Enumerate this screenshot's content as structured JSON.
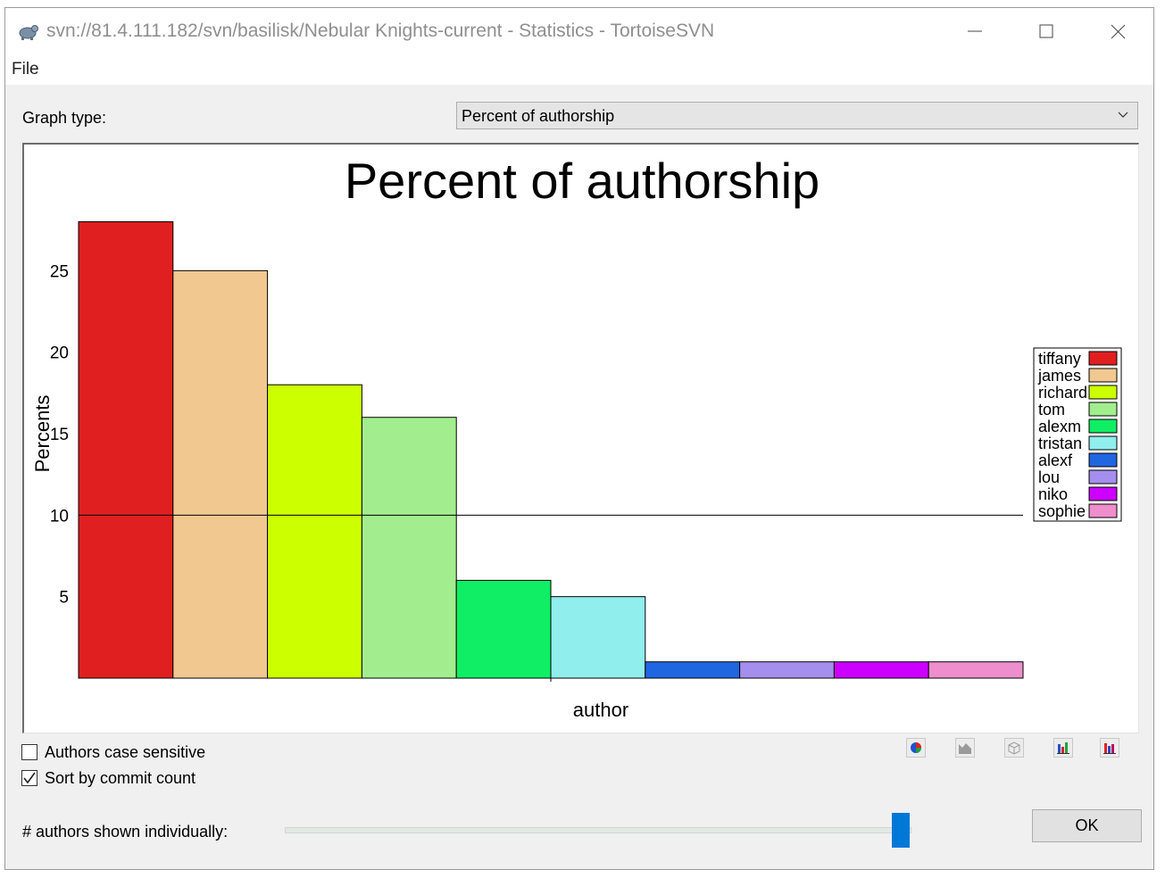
{
  "window": {
    "title": "svn://81.4.111.182/svn/basilisk/Nebular Knights-current - Statistics - TortoiseSVN",
    "icon": "tortoise-icon"
  },
  "menu": {
    "file_label": "File"
  },
  "graph_type": {
    "label": "Graph type:",
    "selected": "Percent of authorship"
  },
  "options": {
    "case_sensitive_label": "Authors case sensitive",
    "case_sensitive_checked": false,
    "sort_label": "Sort by commit count",
    "sort_checked": true
  },
  "slider": {
    "label": "# authors shown individually:",
    "value_fraction": 0.98
  },
  "toolbar": {
    "buttons": [
      "pie-chart-icon",
      "area-chart-icon",
      "3d-chart-icon",
      "bar-chart-icon",
      "stacked-bar-chart-icon"
    ]
  },
  "ok_label": "OK",
  "chart_data": {
    "type": "bar",
    "title": "Percent of authorship",
    "xlabel": "author",
    "ylabel": "Percents",
    "ylim": [
      0,
      30
    ],
    "yticks": [
      5,
      10,
      15,
      20,
      25
    ],
    "reference_line": 10,
    "grid": false,
    "legend_position": "right",
    "categories": [
      "tiffany",
      "james",
      "richard",
      "tom",
      "alexm",
      "tristan",
      "alexf",
      "lou",
      "niko",
      "sophie"
    ],
    "values": [
      28,
      25,
      18,
      16,
      6,
      5,
      1,
      1,
      1,
      1
    ],
    "colors": [
      "#e02020",
      "#f0c890",
      "#ccff00",
      "#a2ee8e",
      "#10ee66",
      "#90eeec",
      "#2066e0",
      "#a48eee",
      "#cc00ff",
      "#ee8ecc"
    ]
  }
}
